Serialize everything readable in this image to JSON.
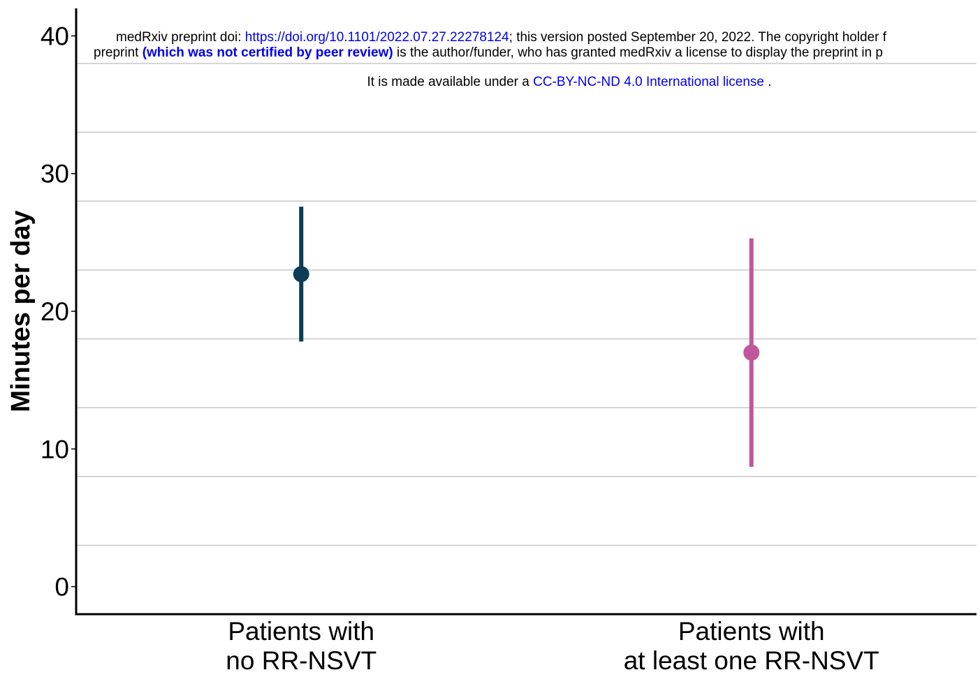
{
  "banner": {
    "line1_prefix": "medRxiv preprint doi: ",
    "line1_link": "https://doi.org/10.1101/2022.07.27.22278124",
    "line1_suffix": "; this version posted September 20, 2022. The copyright holder f",
    "line2_prefix": "preprint  ",
    "line2_bold": "(which was not certified by peer review)",
    "line2_suffix": " is the author/funder, who has granted medRxiv a license to display the preprint in p",
    "line3_prefix": "It is made available under a ",
    "line3_link": "CC-BY-NC-ND 4.0 International license",
    "line3_suffix": " ."
  },
  "chart_data": {
    "type": "scatter",
    "title": "",
    "xlabel": "",
    "ylabel": "Minutes per day",
    "ylim": [
      -2,
      42
    ],
    "yticks": [
      0,
      10,
      20,
      30,
      40
    ],
    "grid": true,
    "categories": [
      [
        "Patients with",
        "no RR-NSVT"
      ],
      [
        "Patients with",
        "at least one RR-NSVT"
      ]
    ],
    "series": [
      {
        "category_index": 0,
        "estimate": 22.7,
        "lower": 17.8,
        "upper": 27.6,
        "color": "#0d3d56"
      },
      {
        "category_index": 1,
        "estimate": 17.0,
        "lower": 8.7,
        "upper": 25.3,
        "color": "#c1579b"
      }
    ]
  }
}
